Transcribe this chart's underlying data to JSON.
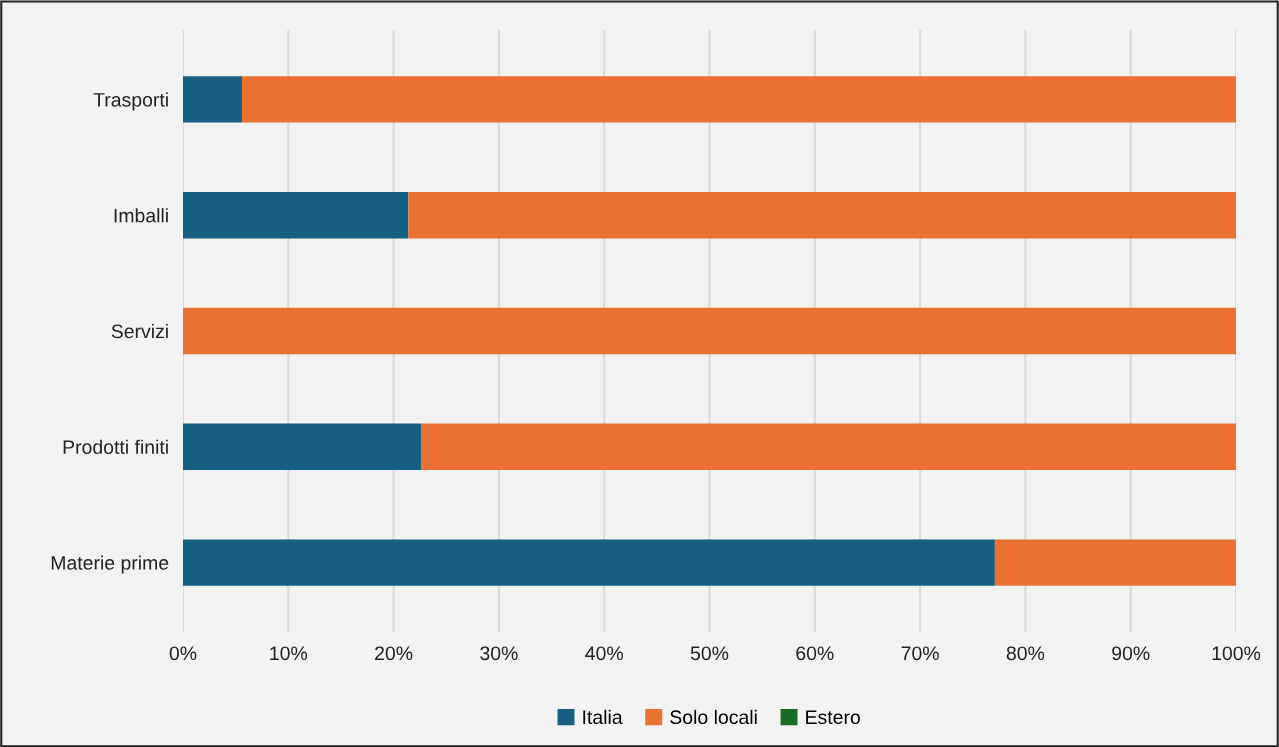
{
  "chart_data": {
    "type": "bar",
    "orientation": "horizontal",
    "stacked": true,
    "categories": [
      "Trasporti",
      "Imballi",
      "Servizi",
      "Prodotti finiti",
      "Materie prime"
    ],
    "series": [
      {
        "name": "Italia",
        "color": "#156082",
        "values": [
          5.6,
          21.4,
          0,
          22.6,
          77.1
        ]
      },
      {
        "name": "Solo locali",
        "color": "#e97132",
        "values": [
          94.4,
          78.6,
          100,
          77.4,
          22.9
        ]
      },
      {
        "name": "Estero",
        "color": "#196b24",
        "values": [
          0,
          0,
          0,
          0,
          0
        ]
      }
    ],
    "xlim": [
      0,
      100
    ],
    "xticks": [
      {
        "value": 0,
        "label": "0%"
      },
      {
        "value": 10,
        "label": "10%"
      },
      {
        "value": 20,
        "label": "20%"
      },
      {
        "value": 30,
        "label": "30%"
      },
      {
        "value": 40,
        "label": "40%"
      },
      {
        "value": 50,
        "label": "50%"
      },
      {
        "value": 60,
        "label": "60%"
      },
      {
        "value": 70,
        "label": "70%"
      },
      {
        "value": 80,
        "label": "80%"
      },
      {
        "value": 90,
        "label": "90%"
      },
      {
        "value": 100,
        "label": "100%"
      }
    ],
    "grid": "x",
    "legend": "bottom"
  }
}
